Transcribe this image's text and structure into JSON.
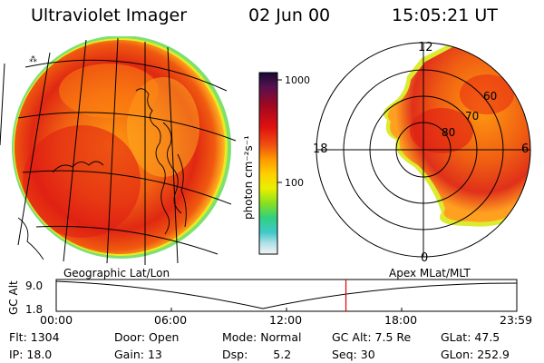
{
  "header": {
    "title": "Ultraviolet Imager",
    "date": "02 Jun 00",
    "time": "15:05:21 UT"
  },
  "colorbar": {
    "unit_label": "photon cm⁻²s⁻¹",
    "tick_1000": "1000",
    "tick_100": "100",
    "colors": [
      "#1a0b3c",
      "#5a1050",
      "#a00820",
      "#d81010",
      "#f04010",
      "#ff9000",
      "#ffd000",
      "#e8f000",
      "#90e020",
      "#30d070",
      "#30c8c0",
      "#a0e0e8",
      "#f0f0f0"
    ]
  },
  "left_panel": {
    "projection_label": "Geographic Lat/Lon"
  },
  "right_panel": {
    "projection_label": "Apex MLat/MLT",
    "mlt_labels": {
      "top": "12",
      "left": "18",
      "right": "6",
      "bottom": "0"
    },
    "lat_labels": [
      "80",
      "70",
      "60"
    ]
  },
  "altitude_plot": {
    "ylabel": "GC Alt",
    "ytick_top": "9.0",
    "ytick_bottom": "1.8",
    "xticks": [
      "00:00",
      "06:00",
      "12:00",
      "18:00",
      "23:59"
    ],
    "current_time_fraction": 0.629,
    "marker_color": "#e00000"
  },
  "info": {
    "flt_label": "Flt:",
    "flt_value": "1304",
    "ip_label": "IP:",
    "ip_value": "18.0",
    "door_label": "Door:",
    "door_value": "Open",
    "gain_label": "Gain:",
    "gain_value": "13",
    "mode_label": "Mode:",
    "mode_value": "Normal",
    "dsp_label": "Dsp:",
    "dsp_value": "5.2",
    "gcalt_label": "GC Alt:",
    "gcalt_value": "7.5 Re",
    "seq_label": "Seq:",
    "seq_value": "30",
    "glat_label": "GLat:",
    "glat_value": "47.5",
    "glon_label": "GLon:",
    "glon_value": "252.9"
  }
}
